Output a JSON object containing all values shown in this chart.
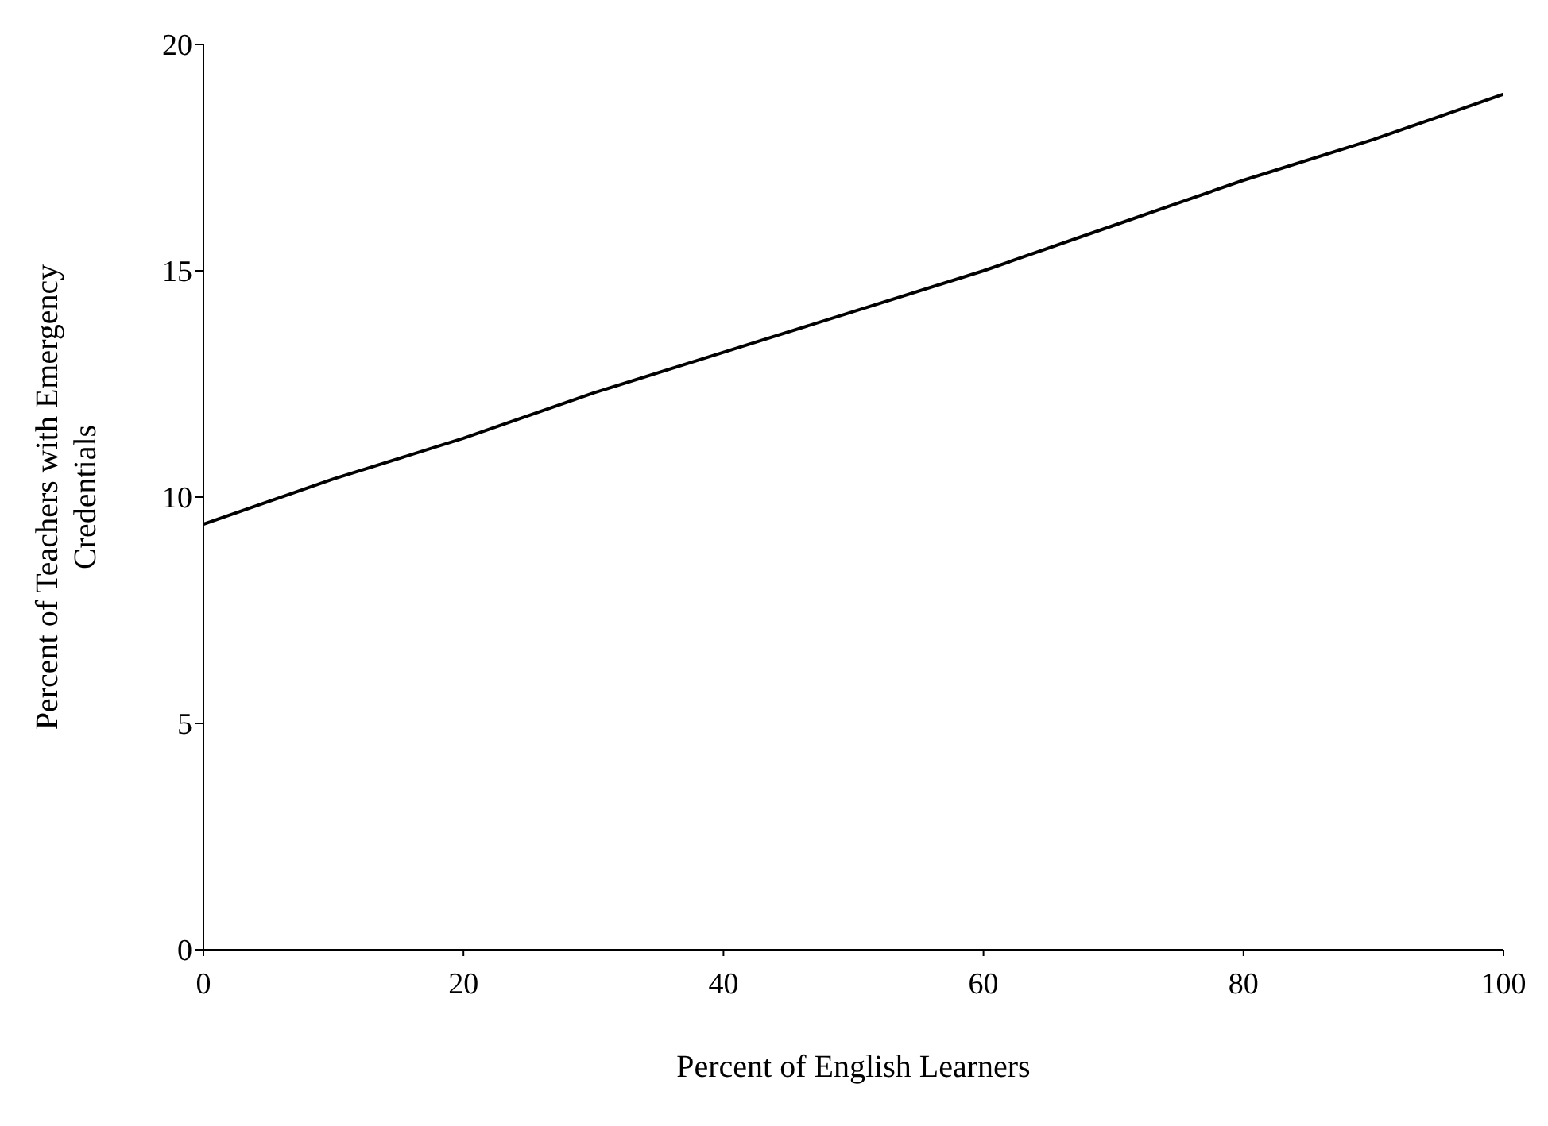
{
  "chart_data": {
    "type": "line",
    "xlabel": "Percent of English Learners",
    "ylabel": "Percent of Teachers with Emergency Credentials",
    "x": [
      0,
      10,
      20,
      30,
      40,
      50,
      60,
      70,
      80,
      90,
      100
    ],
    "series": [
      {
        "color": "#000000",
        "values": [
          9.4,
          10.4,
          11.3,
          12.3,
          13.2,
          14.1,
          15.0,
          16.0,
          17.0,
          17.9,
          18.9
        ]
      }
    ],
    "xlim": [
      0,
      100
    ],
    "xticks": [
      0,
      20,
      40,
      60,
      80,
      100
    ],
    "ylim": [
      0,
      20
    ],
    "yticks": [
      0,
      5,
      10,
      15,
      20
    ],
    "grid": false,
    "legend": false,
    "marker": "none",
    "line_style": "solid"
  }
}
